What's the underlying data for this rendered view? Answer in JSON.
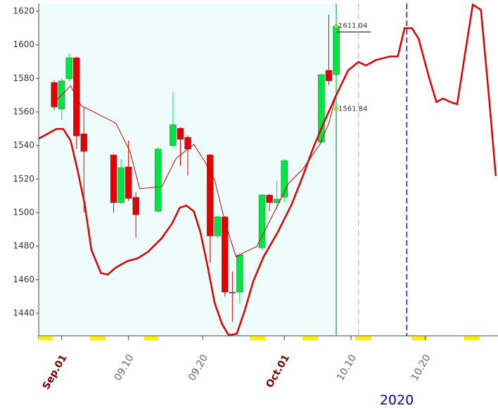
{
  "chart_data": {
    "type": "candlestick",
    "x": [
      0,
      1,
      2,
      3,
      4,
      8,
      9,
      10,
      11,
      14,
      16,
      17,
      18,
      21,
      22,
      23,
      24,
      25,
      28,
      29,
      30,
      31,
      36,
      37,
      38
    ],
    "open": [
      1577.6,
      1561.7,
      1579.7,
      1592.3,
      1547.0,
      1534.4,
      1505.9,
      1527.3,
      1509.2,
      1500.8,
      1539.9,
      1550.3,
      1544.9,
      1534.4,
      1486.1,
      1497.5,
      1452.6,
      1452.6,
      1479.0,
      1510.5,
      1505.9,
      1509.2,
      1542.0,
      1584.8,
      1582.2
    ],
    "high": [
      1579,
      1580,
      1595,
      1593,
      1563,
      1535,
      1532,
      1543,
      1512,
      1539,
      1572,
      1551,
      1546,
      1535,
      1498,
      1498,
      1465,
      1476,
      1511,
      1511,
      1519,
      1532,
      1583,
      1618,
      1620
    ],
    "low": [
      1561,
      1555,
      1578,
      1538,
      1500,
      1500,
      1505,
      1507,
      1485,
      1500,
      1539,
      1528,
      1522,
      1470,
      1485,
      1450,
      1435,
      1446,
      1478,
      1501,
      1502,
      1506,
      1541,
      1576,
      1561.84
    ],
    "close": [
      1562.9,
      1578.5,
      1592.3,
      1545.7,
      1536.5,
      1505.9,
      1526.8,
      1508.4,
      1498.7,
      1537.8,
      1552.4,
      1543.6,
      1537.8,
      1486.1,
      1497.5,
      1452.6,
      1452.0,
      1474.8,
      1510.5,
      1505.9,
      1508.0,
      1531.0,
      1582.2,
      1578.5,
      1611.04
    ],
    "up_color": "#00e640",
    "down_color": "#e60000",
    "lines": [
      {
        "color": "#e00000",
        "width": 2.5,
        "x": [
          -2.1,
          -0.9,
          0.3,
          1.2,
          2.2,
          3.1,
          4.1,
          5.0,
          6.3,
          7.2,
          8.3,
          9.8,
          11.2,
          12.6,
          14.5,
          15.9,
          16.9,
          17.8,
          18.8,
          19.7,
          20.7,
          21.6,
          22.6,
          23.5,
          24.6,
          25.7,
          26.8,
          28.2,
          30.1,
          32.0,
          33.5,
          34.9,
          36.3,
          38.0,
          39.6,
          41.0,
          42.0,
          43.4,
          45.3,
          46.3,
          47.2,
          48.2,
          49.1,
          50.5,
          51.5,
          52.4,
          53.4,
          54.3,
          55.3,
          56.4,
          57.5,
          58.6,
          59.5
        ],
        "values": [
          1544.1,
          1547.0,
          1549.9,
          1549.9,
          1542.8,
          1526.0,
          1505.0,
          1477.8,
          1463.9,
          1463.1,
          1467.3,
          1471.0,
          1472.7,
          1476.5,
          1484.9,
          1493.7,
          1502.9,
          1504.2,
          1500.8,
          1488.2,
          1467.3,
          1446.3,
          1433.7,
          1427.0,
          1427.8,
          1442.1,
          1458.9,
          1473.6,
          1488.2,
          1505.0,
          1521.8,
          1538.6,
          1553.3,
          1570.1,
          1584.8,
          1589.8,
          1587.7,
          1591.0,
          1593.1,
          1593.1,
          1609.9,
          1609.9,
          1603.6,
          1580.6,
          1565.9,
          1568.0,
          1565.9,
          1564.6,
          1593.1,
          1624.0,
          1620.8,
          1568.0,
          1521.8
        ]
      },
      {
        "color": "#d00000",
        "width": 1,
        "x": [
          0,
          1.0,
          2.2,
          3.6,
          5.5,
          8.3,
          10.2,
          11.5,
          14.5,
          16.4,
          18.8,
          20.2,
          21.6,
          23.0,
          24.5,
          25.7,
          27.3,
          29.7,
          31.6,
          33.5,
          35.8,
          37.0,
          38.0
        ],
        "values": [
          1565.9,
          1570.1,
          1575.5,
          1563.8,
          1559.6,
          1553.3,
          1536.5,
          1514.3,
          1515.5,
          1532.3,
          1540.7,
          1531.0,
          1519.7,
          1494.5,
          1473.6,
          1476.5,
          1479.9,
          1500.8,
          1517.6,
          1526.0,
          1540.7,
          1553.3,
          1570.1
        ]
      }
    ],
    "vlines": [
      {
        "x": 38,
        "color": "#2a8a8a",
        "dash": "none"
      },
      {
        "x": 41,
        "color": "#bbbbbb",
        "dash": "8,6"
      },
      {
        "x": 47.5,
        "color": "#0000cc",
        "dash": "8,4"
      }
    ],
    "annotations": [
      {
        "x": 38,
        "y": 1611.04,
        "text": "1611.04"
      },
      {
        "x": 38,
        "y": 1561.84,
        "text": "1561.84"
      }
    ],
    "xlim": [
      -2.1,
      59.8
    ],
    "ylim": [
      1426.6,
      1624.6
    ],
    "xticks": [
      {
        "value": 1,
        "label": "Sep.01"
      },
      {
        "value": 10,
        "label": "09.10"
      },
      {
        "value": 20,
        "label": "09.20"
      },
      {
        "value": 31,
        "label": "Oct.01"
      },
      {
        "value": 40,
        "label": "10.10"
      },
      {
        "value": 50,
        "label": "10.20"
      }
    ],
    "xtick_colors": [
      "#800000",
      "#666666",
      "#666666",
      "#800000",
      "#666666",
      "#666666"
    ],
    "yticks": [
      1440,
      1460,
      1480,
      1500,
      1520,
      1540,
      1560,
      1580,
      1600,
      1620
    ],
    "year_label": "2020",
    "history_background": "#eefcfc"
  }
}
